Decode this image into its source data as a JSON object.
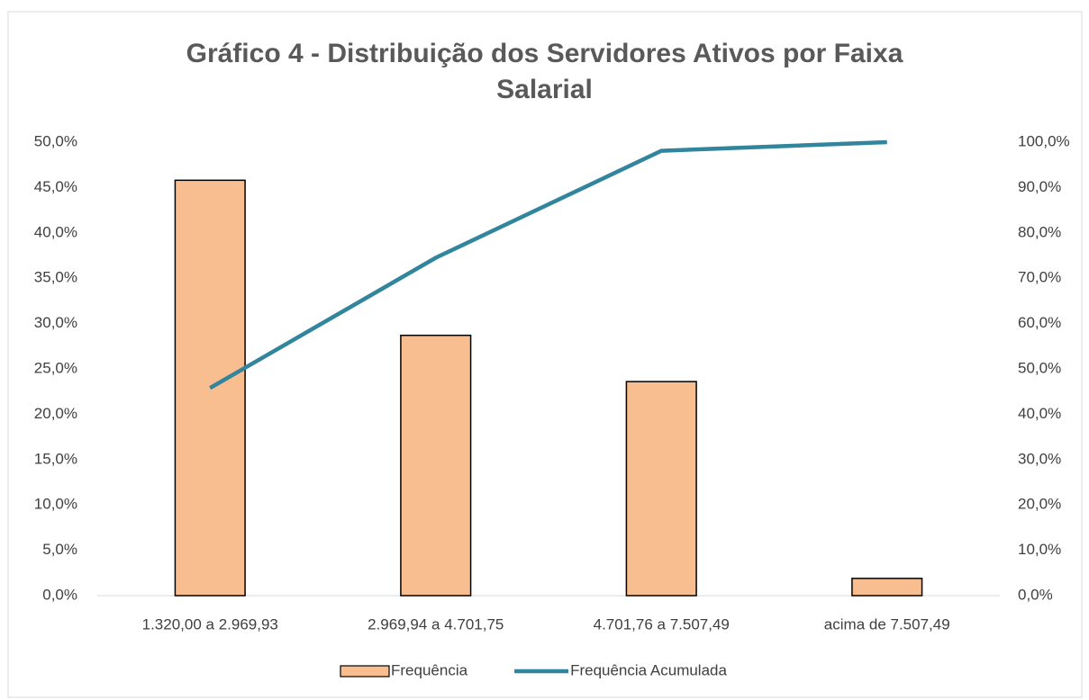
{
  "chart_data": {
    "type": "bar",
    "title": "Gráfico 4 - Distribuição dos Servidores Ativos por Faixa Salarial",
    "categories": [
      "1.320,00 a 2.969,93",
      "2.969,94 a 4.701,75",
      "4.701,76 a  7.507,49",
      "acima de 7.507,49"
    ],
    "series": [
      {
        "name": "Frequência",
        "type": "bar",
        "color": "#f8be8f",
        "values": [
          45.8,
          28.7,
          23.6,
          1.9
        ]
      },
      {
        "name": "Frequência Acumulada",
        "type": "line",
        "axis": "y2",
        "color": "#31859c",
        "values": [
          45.8,
          74.5,
          98.1,
          100
        ]
      }
    ],
    "ylim": [
      0,
      50
    ],
    "yticks": [
      {
        "value": 0,
        "label": "0,0%"
      },
      {
        "value": 5,
        "label": "5,0%"
      },
      {
        "value": 10,
        "label": "10,0%"
      },
      {
        "value": 15,
        "label": "15,0%"
      },
      {
        "value": 20,
        "label": "20,0%"
      },
      {
        "value": 25,
        "label": "25,0%"
      },
      {
        "value": 30,
        "label": "30,0%"
      },
      {
        "value": 35,
        "label": "35,0%"
      },
      {
        "value": 40,
        "label": "40,0%"
      },
      {
        "value": 45,
        "label": "45,0%"
      },
      {
        "value": 50,
        "label": "50,0%"
      }
    ],
    "y2lim": [
      0,
      100
    ],
    "y2ticks": [
      {
        "value": 0,
        "label": "0,0%"
      },
      {
        "value": 10,
        "label": "10,0%"
      },
      {
        "value": 20,
        "label": "20,0%"
      },
      {
        "value": 30,
        "label": "30,0%"
      },
      {
        "value": 40,
        "label": "40,0%"
      },
      {
        "value": 50,
        "label": "50,0%"
      },
      {
        "value": 60,
        "label": "60,0%"
      },
      {
        "value": 70,
        "label": "70,0%"
      },
      {
        "value": 80,
        "label": "80,0%"
      },
      {
        "value": 90,
        "label": "90,0%"
      },
      {
        "value": 100,
        "label": "100,0%"
      }
    ],
    "grid": false,
    "legend": "bottom"
  }
}
